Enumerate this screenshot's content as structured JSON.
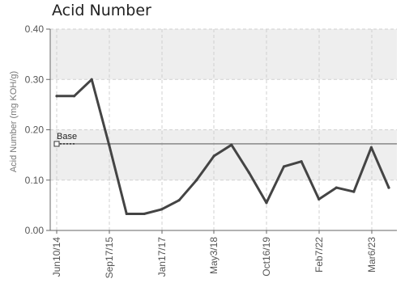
{
  "chart_data": {
    "type": "line",
    "title": "Acid Number",
    "xlabel": "",
    "ylabel": "Acid Number (mg KOH/g)",
    "ylim": [
      0,
      0.4
    ],
    "yticks": [
      0.0,
      0.1,
      0.2,
      0.3,
      0.4
    ],
    "ytick_labels": [
      "0.00",
      "0.10",
      "0.20",
      "0.30",
      "0.40"
    ],
    "x_tick_labels": [
      "Jun10/14",
      "Sep17/15",
      "Jan17/17",
      "May3/18",
      "Oct16/19",
      "Feb7/22",
      "Mar6/23"
    ],
    "grid": true,
    "series": [
      {
        "values": [
          0.267,
          0.267,
          0.3,
          0.17,
          0.033,
          0.033,
          0.042,
          0.06,
          0.1,
          0.148,
          0.17,
          0.115,
          0.055,
          0.127,
          0.137,
          0.062,
          0.085,
          0.077,
          0.165,
          0.085
        ]
      }
    ],
    "reference_line": {
      "label": "Base",
      "value": 0.172
    },
    "colors": {
      "line": "#444444",
      "baseline": "#888888",
      "band": "#eeeeee",
      "grid": "#d0d0d0"
    }
  }
}
